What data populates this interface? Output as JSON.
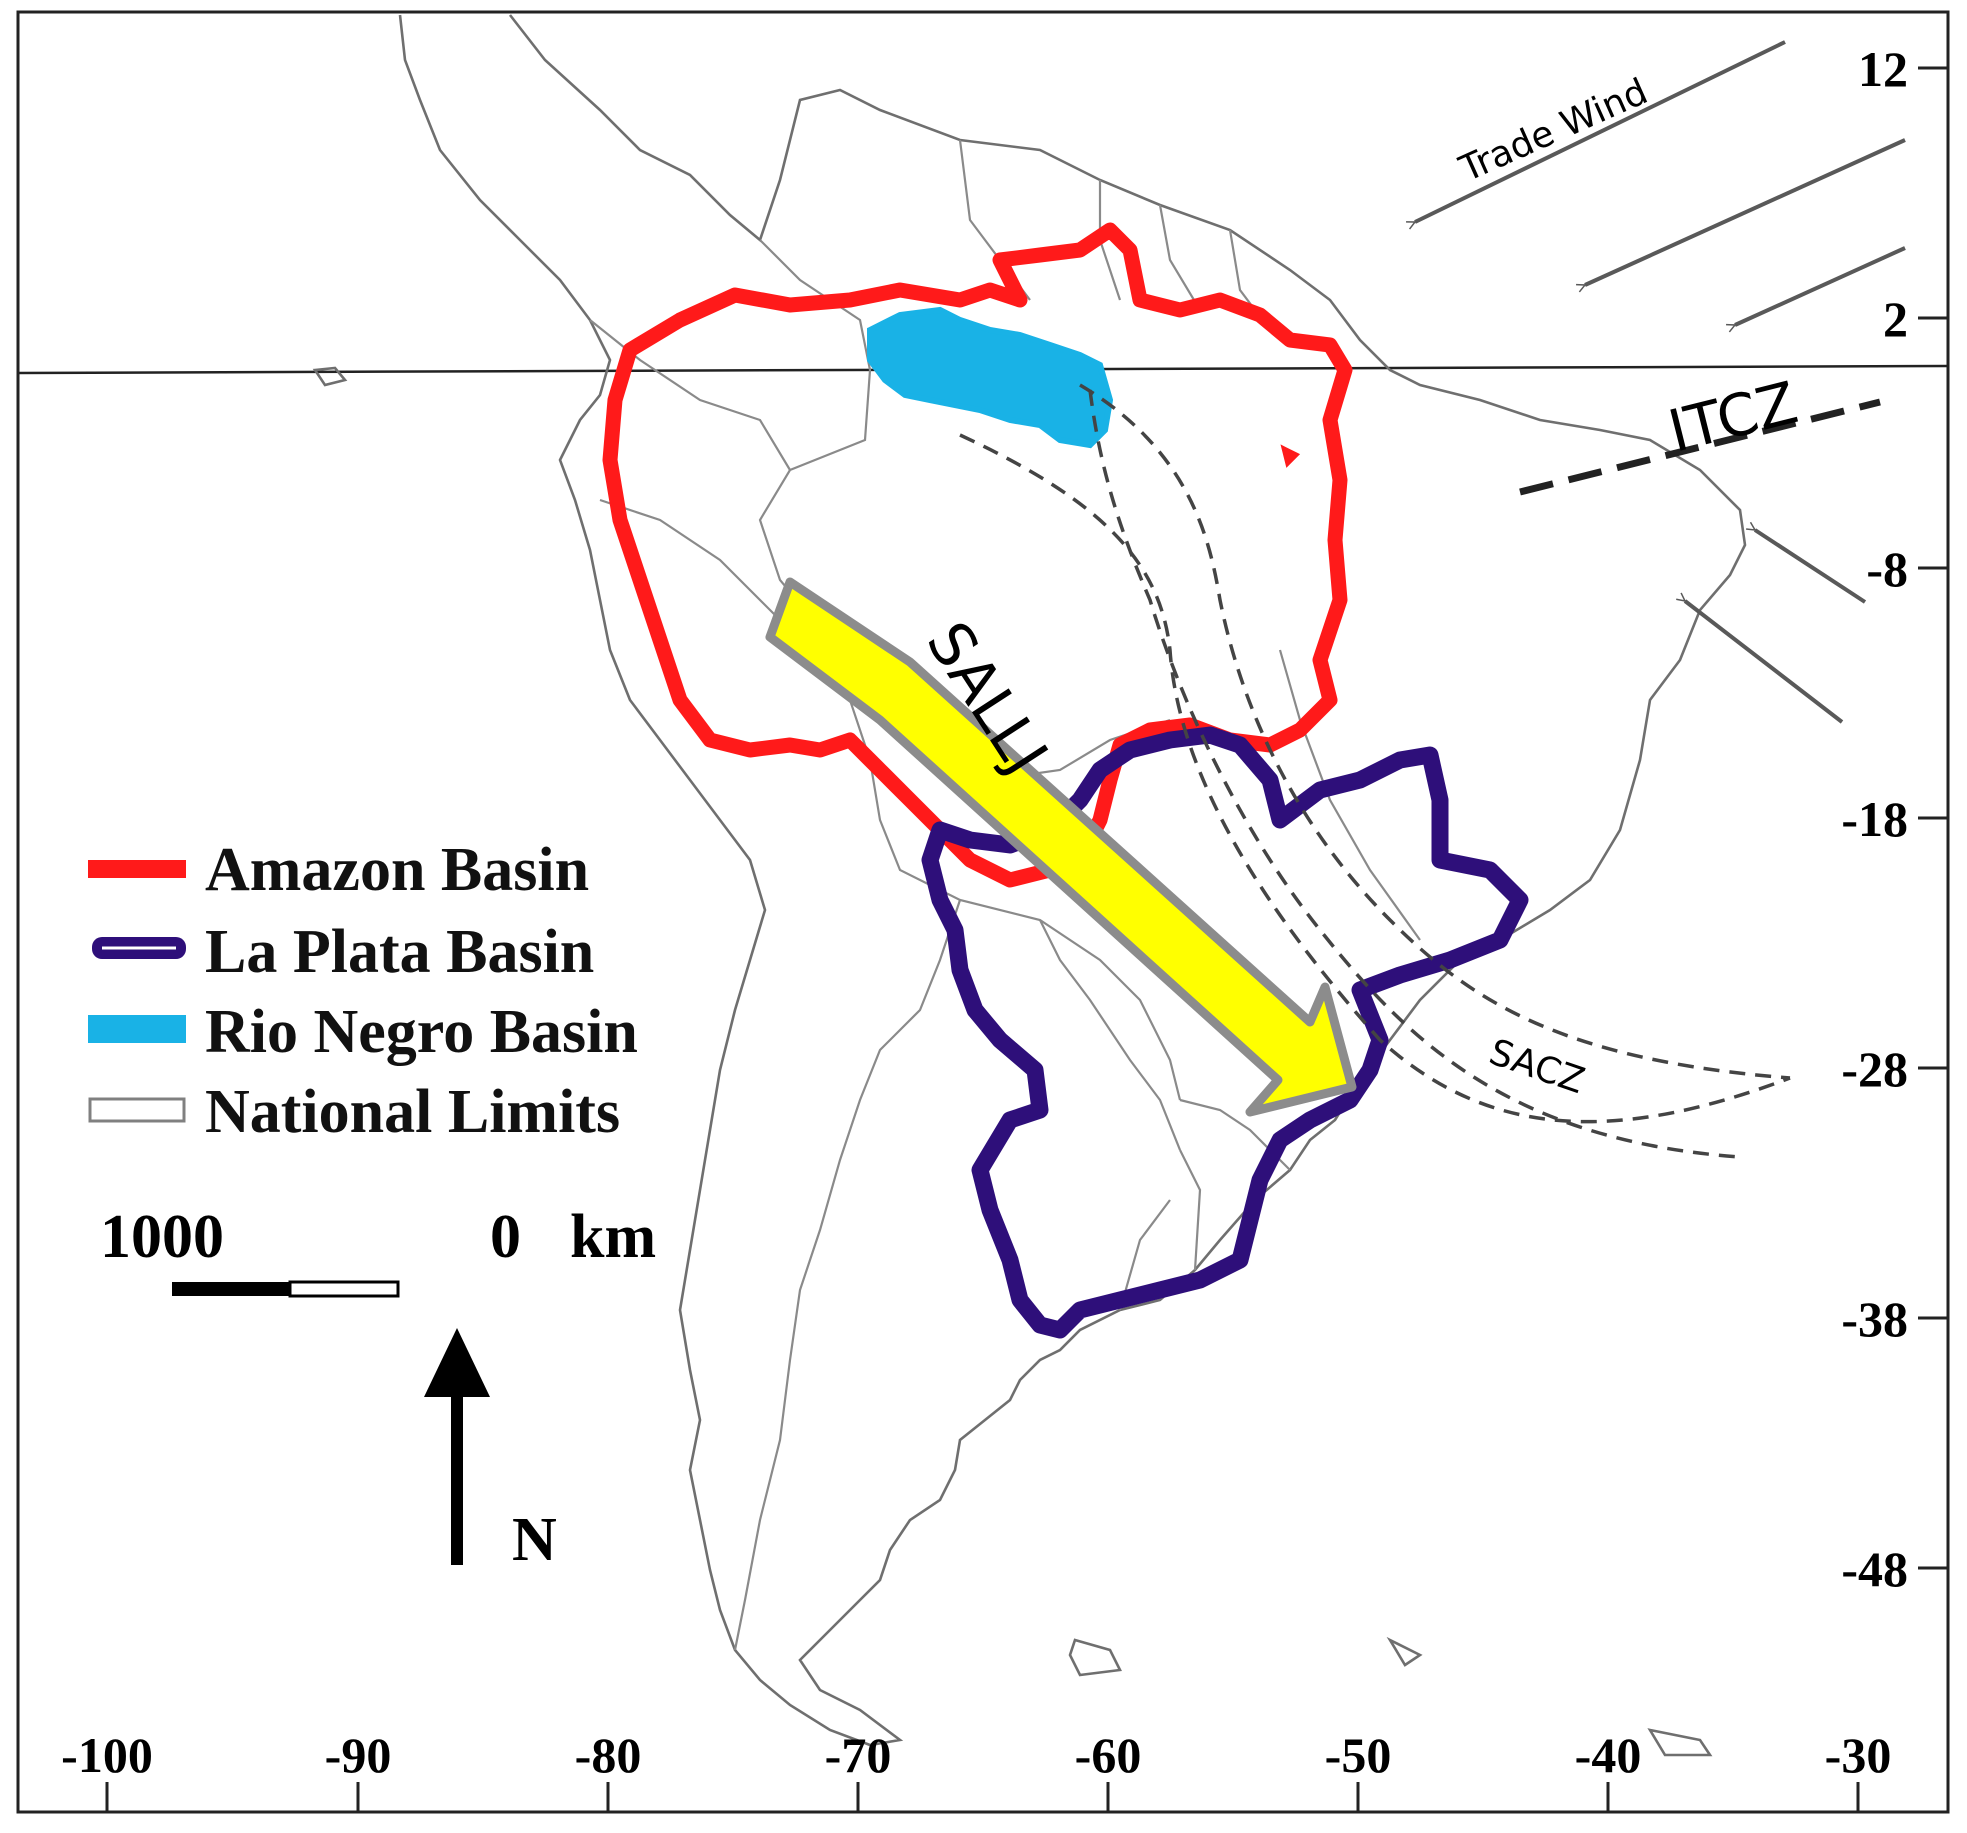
{
  "map": {
    "annotations": {
      "trade_wind": "Trade Wind",
      "itcz": "ITCZ",
      "sallj": "SALLJ",
      "sacz": "SACZ"
    },
    "y_ticks": [
      "12",
      "2",
      "-8",
      "-18",
      "-28",
      "-38",
      "-48"
    ],
    "x_ticks": [
      "-100",
      "-90",
      "-80",
      "-70",
      "-60",
      "-50",
      "-40",
      "-30"
    ],
    "legend": [
      {
        "label": "Amazon Basin",
        "color": "#ff1a1a"
      },
      {
        "label": "La Plata Basin",
        "color": "#2e0f7a"
      },
      {
        "label": "Rio Negro Basin",
        "color": "#19b2e6"
      },
      {
        "label": "National Limits",
        "color": "#808080"
      }
    ],
    "scale_bar": {
      "left_label": "1000",
      "right_label": "0",
      "unit": "km"
    },
    "north_label": "N",
    "colors": {
      "amazon": "#ff1a1a",
      "la_plata": "#2e0f7a",
      "rio_negro": "#19b2e6",
      "sallj_fill": "#ffff00",
      "sallj_stroke": "#8c8c8c",
      "wind_arrow": "#595959"
    }
  }
}
